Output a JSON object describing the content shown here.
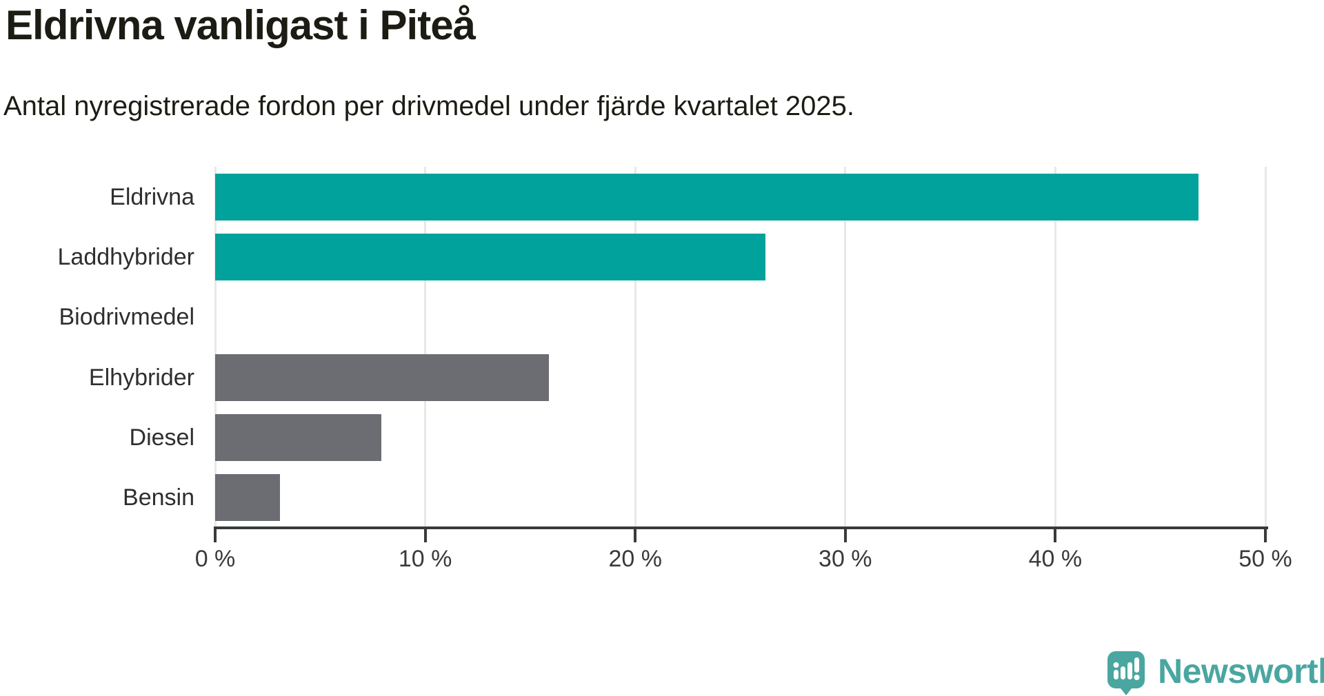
{
  "header": {
    "title": "Eldrivna vanligast i Piteå",
    "subtitle": "Antal nyregistrerade fordon per drivmedel under fjärde kvartalet 2025."
  },
  "chart_data": {
    "type": "bar",
    "orientation": "horizontal",
    "title": "Eldrivna vanligast i Piteå",
    "subtitle": "Antal nyregistrerade fordon per drivmedel under fjärde kvartalet 2025.",
    "categories": [
      "Eldrivna",
      "Laddhybrider",
      "Biodrivmedel",
      "Elhybrider",
      "Diesel",
      "Bensin"
    ],
    "values": [
      46.8,
      26.2,
      0,
      15.9,
      7.9,
      3.1
    ],
    "unit": "%",
    "xlabel": "",
    "ylabel": "",
    "xlim": [
      0,
      50
    ],
    "x_ticks": [
      0,
      10,
      20,
      30,
      40,
      50
    ],
    "x_tick_labels": [
      "0 %",
      "10 %",
      "20 %",
      "30 %",
      "40 %",
      "50 %"
    ],
    "bar_colors": [
      "#00a29b",
      "#00a29b",
      "#00a29b",
      "#6c6d72",
      "#6c6d72",
      "#6c6d72"
    ],
    "grid": true,
    "legend": false
  },
  "colors": {
    "teal_bar": "#00a29b",
    "gray_bar": "#6c6d72",
    "text_dark": "#1c1c14",
    "axis": "#3a3a3a",
    "gridline": "#e8e8e8",
    "brand_teal": "#4aa6a0"
  },
  "footer": {
    "brand": "Newsworthy"
  }
}
